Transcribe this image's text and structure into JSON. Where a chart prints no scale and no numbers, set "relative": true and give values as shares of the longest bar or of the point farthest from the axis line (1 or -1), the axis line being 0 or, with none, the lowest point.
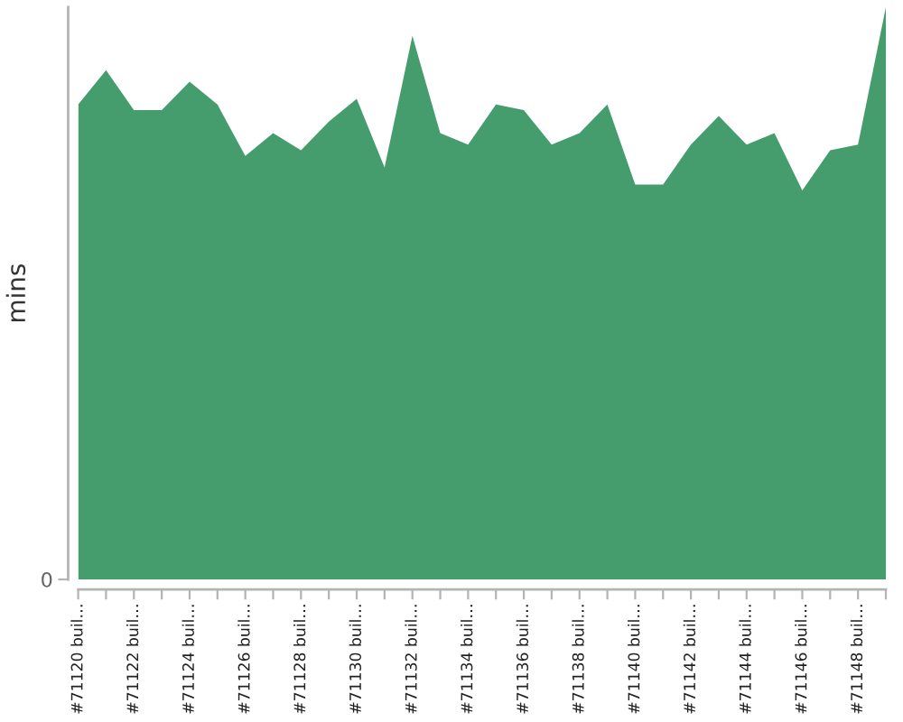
{
  "chart_data": {
    "type": "area",
    "ylabel": "mins",
    "categories": [
      "#71120 buil…",
      null,
      "#71122 buil…",
      null,
      "#71124 buil…",
      null,
      "#71126 buil…",
      null,
      "#71128 buil…",
      null,
      "#71130 buil…",
      null,
      "#71132 buil…",
      null,
      "#71134 buil…",
      null,
      "#71136 buil…",
      null,
      "#71138 buil…",
      null,
      "#71140 buil…",
      null,
      "#71142 buil…",
      null,
      "#71144 buil…",
      null,
      "#71146 buil…",
      null,
      "#71148 buil…",
      null
    ],
    "values": [
      0.83,
      0.89,
      0.82,
      0.82,
      0.87,
      0.83,
      0.74,
      0.78,
      0.75,
      0.8,
      0.84,
      0.72,
      0.95,
      0.78,
      0.76,
      0.83,
      0.82,
      0.76,
      0.78,
      0.83,
      0.69,
      0.69,
      0.76,
      0.81,
      0.76,
      0.78,
      0.68,
      0.75,
      0.76,
      1
    ],
    "color": "#459d6d",
    "relative": true,
    "annotations": [
      "0"
    ]
  }
}
